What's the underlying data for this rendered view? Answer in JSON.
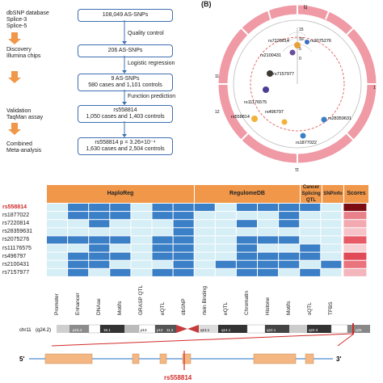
{
  "panelA": {
    "left_labels": {
      "db": [
        "dbSNP database",
        "Splice-3",
        "Splice-5"
      ],
      "discovery": [
        "Discovery",
        "Illumina chips"
      ],
      "validation": [
        "Validation",
        "TaqMan assay"
      ],
      "combined": [
        "Combined",
        "Meta-analysis"
      ]
    },
    "boxes": {
      "b1": [
        "108,049 AS-SNPs"
      ],
      "b2": [
        "206 AS-SNPs"
      ],
      "b3": [
        "9 AS-SNPs",
        "580 cases and 1,101 controls"
      ],
      "b4": [
        "rs558814",
        "1,050 cases and 1,403 controls"
      ],
      "b5": [
        "rs558814 p = 3.26×10⁻⁴",
        "1,630 cases and 2,504 controls"
      ]
    },
    "steps": [
      "Quality control",
      "Logistic regression",
      "Function prediction"
    ]
  },
  "panelB": {
    "letter": "(B)",
    "top_tick": "22",
    "left_tick": "11",
    "right_tick": "1",
    "left2_tick": "12",
    "bottom_tick": "11",
    "center_values": [
      "15",
      "10",
      "5",
      "0"
    ],
    "snps": [
      {
        "name": "rs7220814",
        "color": "#e8a23a"
      },
      {
        "name": "rs2075276",
        "color": "#3b6fbf"
      },
      {
        "name": "rs2100431",
        "color": "#6b4e9c"
      },
      {
        "name": "rs7157977",
        "color": "#3c3a30"
      },
      {
        "name": "rs11176575",
        "color": "#4a3f95"
      },
      {
        "name": "rs558814",
        "color": "#f0b23a"
      },
      {
        "name": "rs496797",
        "color": "#f0b23a"
      },
      {
        "name": "rs28359631",
        "color": "#3b7fc7"
      },
      {
        "name": "rs1877022",
        "color": "#3b7fc7"
      }
    ]
  },
  "panelC": {
    "headers": [
      "HaploReg",
      "RegulomeDB",
      "Cancer Splicing QTL",
      "SNPinfo",
      "Scores"
    ],
    "rows": [
      "rs558814",
      "rs1877022",
      "rs7220814",
      "rs28359631",
      "rs2075276",
      "rs11176575",
      "rs496797",
      "rs2100431",
      "rs7157977"
    ],
    "highlight_row": "rs558814",
    "columns": [
      "Promoter",
      "Enhancer",
      "DNAse",
      "Motifs",
      "GRASP QTL",
      "eQTL",
      "dbSNP",
      "rtein Binding",
      "eQTL",
      "Chromatin",
      "Histone",
      "Motifs",
      "sQTL",
      "TFBS"
    ],
    "grid": [
      [
        0,
        1,
        1,
        1,
        0,
        1,
        1,
        1,
        0,
        1,
        1,
        1,
        1,
        0
      ],
      [
        0,
        1,
        1,
        1,
        0,
        1,
        1,
        0,
        0,
        0,
        0,
        1,
        0,
        0
      ],
      [
        0,
        0,
        1,
        0,
        0,
        0,
        1,
        0,
        0,
        1,
        0,
        1,
        0,
        0
      ],
      [
        0,
        0,
        0,
        0,
        0,
        0,
        1,
        0,
        0,
        0,
        0,
        0,
        0,
        0
      ],
      [
        1,
        1,
        1,
        1,
        0,
        1,
        1,
        0,
        0,
        1,
        1,
        1,
        0,
        0
      ],
      [
        0,
        0,
        1,
        0,
        0,
        1,
        1,
        0,
        0,
        1,
        0,
        0,
        1,
        0
      ],
      [
        0,
        1,
        1,
        1,
        0,
        1,
        1,
        0,
        0,
        1,
        1,
        1,
        1,
        0
      ],
      [
        0,
        1,
        1,
        0,
        0,
        0,
        1,
        0,
        1,
        1,
        1,
        1,
        0,
        1
      ],
      [
        0,
        1,
        0,
        1,
        0,
        1,
        1,
        0,
        0,
        1,
        1,
        0,
        1,
        0
      ]
    ],
    "scores": [
      "#7a0c12",
      "#e8818a",
      "#f2a9b0",
      "#f6c3c8",
      "#e65b66",
      "#f8cfd3",
      "#e14a57",
      "#e9747e",
      "#f3b6bc"
    ]
  },
  "panelD": {
    "chrom": "chr11",
    "band_q24": "(q24.2)",
    "bands": [
      "p15.4",
      "15.1",
      "p13",
      "p12",
      "11.2",
      "q13.1",
      "q14.1",
      "q22.1",
      "q22.3",
      "q25"
    ],
    "five_prime": "5'",
    "three_prime": "3'",
    "snp_label": "rs558814",
    "colors": {
      "exon": "#f4b784",
      "line": "#6aa0d8",
      "red": "#d12a2a"
    }
  }
}
